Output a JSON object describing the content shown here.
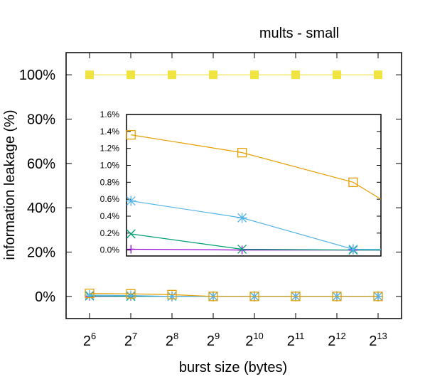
{
  "chart_data": {
    "type": "line",
    "title": "mults - small",
    "xlabel": "burst size (bytes)",
    "ylabel": "information leakage (%)",
    "x_ticks": [
      {
        "base": "2",
        "exp": "6"
      },
      {
        "base": "2",
        "exp": "7"
      },
      {
        "base": "2",
        "exp": "8"
      },
      {
        "base": "2",
        "exp": "9"
      },
      {
        "base": "2",
        "exp": "10"
      },
      {
        "base": "2",
        "exp": "11"
      },
      {
        "base": "2",
        "exp": "12"
      },
      {
        "base": "2",
        "exp": "13"
      }
    ],
    "x_exponents": [
      6,
      7,
      8,
      9,
      10,
      11,
      12,
      13
    ],
    "ylim": [
      -10,
      110
    ],
    "y_ticks": [
      "0%",
      "20%",
      "40%",
      "60%",
      "80%",
      "100%"
    ],
    "y_tick_values": [
      0,
      20,
      40,
      60,
      80,
      100
    ],
    "grid": false,
    "series": [
      {
        "color": "#f0e442",
        "marker": "filled-square",
        "values": [
          100,
          100,
          100,
          100,
          100,
          100,
          100,
          100
        ]
      },
      {
        "color": "#e69f00",
        "marker": "open-square",
        "values": [
          1.36,
          1.15,
          0.8,
          0,
          0,
          0,
          0,
          0
        ]
      },
      {
        "color": "#56b4e9",
        "marker": "asterisk",
        "values": [
          0.58,
          0.38,
          0.01,
          0,
          0,
          0,
          0,
          0
        ]
      },
      {
        "color": "#009e73",
        "marker": "x",
        "values": [
          0.19,
          0.01,
          0,
          0,
          0,
          0,
          0,
          0
        ]
      },
      {
        "color": "#9400d3",
        "marker": "plus",
        "values": [
          0.01,
          0,
          0,
          0,
          0,
          0,
          0,
          0
        ]
      }
    ],
    "inset": {
      "x_exponents": [
        6,
        7,
        8
      ],
      "xlim": [
        5.96,
        8.25
      ],
      "ylim": [
        -0.07,
        1.6
      ],
      "y_ticks": [
        "0.0%",
        "0.2%",
        "0.4%",
        "0.6%",
        "0.8%",
        "1.0%",
        "1.2%",
        "1.4%",
        "1.6%"
      ],
      "y_tick_values": [
        0,
        0.2,
        0.4,
        0.6,
        0.8,
        1.0,
        1.2,
        1.4,
        1.6
      ]
    }
  }
}
